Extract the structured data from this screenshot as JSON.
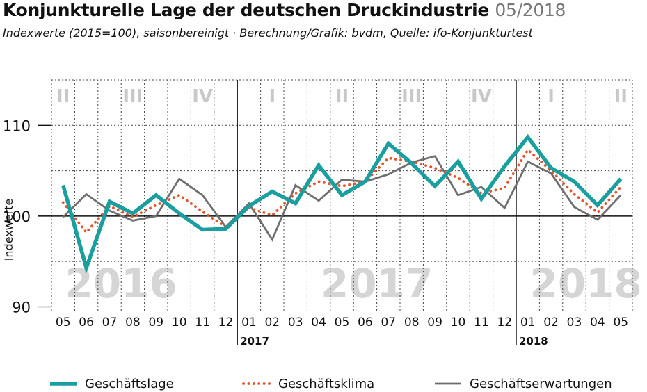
{
  "header": {
    "title": "Konjunkturelle Lage der deutschen Druckindustrie",
    "date": "05/2018",
    "subtitle": "Indexwerte (2015=100), saisonbereinigt · Berechnung/Grafik: bvdm, Quelle: ifo-Konjunkturtest"
  },
  "colors": {
    "lage": "#1a9ea0",
    "klima": "#e0552b",
    "erwartungen": "#6e6e6e",
    "grid": "#444444",
    "quarter_text": "#c8c8c8",
    "year_watermark": "#d5d5d5"
  },
  "chart_data": {
    "type": "line",
    "title": "Konjunkturelle Lage der deutschen Druckindustrie",
    "ylabel": "Indexwerte",
    "xlabel": "",
    "ylim": [
      89.5,
      115
    ],
    "yticks": [
      90,
      100,
      110
    ],
    "categories": [
      "05",
      "06",
      "07",
      "08",
      "09",
      "10",
      "11",
      "12",
      "01",
      "02",
      "03",
      "04",
      "05",
      "06",
      "07",
      "08",
      "09",
      "10",
      "11",
      "12",
      "01",
      "02",
      "03",
      "04",
      "05"
    ],
    "year_markers": [
      {
        "label": "2017",
        "index": 8
      },
      {
        "label": "2018",
        "index": 20
      }
    ],
    "quarters": [
      {
        "label": "II",
        "index": 0
      },
      {
        "label": "III",
        "index": 3
      },
      {
        "label": "IV",
        "index": 6
      },
      {
        "label": "I",
        "index": 9
      },
      {
        "label": "II",
        "index": 12
      },
      {
        "label": "III",
        "index": 15
      },
      {
        "label": "IV",
        "index": 18
      },
      {
        "label": "I",
        "index": 21
      },
      {
        "label": "II",
        "index": 24
      }
    ],
    "year_watermarks": [
      {
        "label": "2016",
        "index": 2.5
      },
      {
        "label": "2017",
        "index": 13.5
      },
      {
        "label": "2018",
        "index": 22.5
      }
    ],
    "series": [
      {
        "name": "Geschäftslage",
        "style": "thick",
        "values": [
          103.4,
          94.3,
          101.6,
          100.3,
          102.3,
          100.3,
          98.5,
          98.6,
          101.1,
          102.7,
          101.4,
          105.6,
          102.3,
          103.8,
          108.0,
          105.8,
          103.3,
          106.0,
          101.9,
          105.5,
          108.7,
          105.3,
          103.8,
          101.2,
          104.1
        ]
      },
      {
        "name": "Geschäftsklima",
        "style": "dotted",
        "values": [
          101.5,
          98.2,
          101.1,
          99.9,
          101.2,
          102.3,
          100.5,
          98.8,
          100.9,
          100.1,
          102.5,
          103.8,
          103.3,
          103.8,
          106.4,
          106.0,
          105.3,
          104.2,
          102.5,
          103.1,
          107.3,
          105.0,
          102.4,
          100.4,
          103.2
        ]
      },
      {
        "name": "Geschäftserwartungen",
        "style": "solid",
        "values": [
          99.9,
          102.4,
          100.6,
          99.5,
          100.0,
          104.1,
          102.3,
          98.8,
          101.4,
          97.4,
          103.4,
          101.7,
          104.0,
          103.8,
          104.6,
          105.9,
          106.6,
          102.3,
          103.2,
          100.9,
          106.0,
          104.7,
          101.0,
          99.6,
          102.3
        ]
      }
    ]
  }
}
